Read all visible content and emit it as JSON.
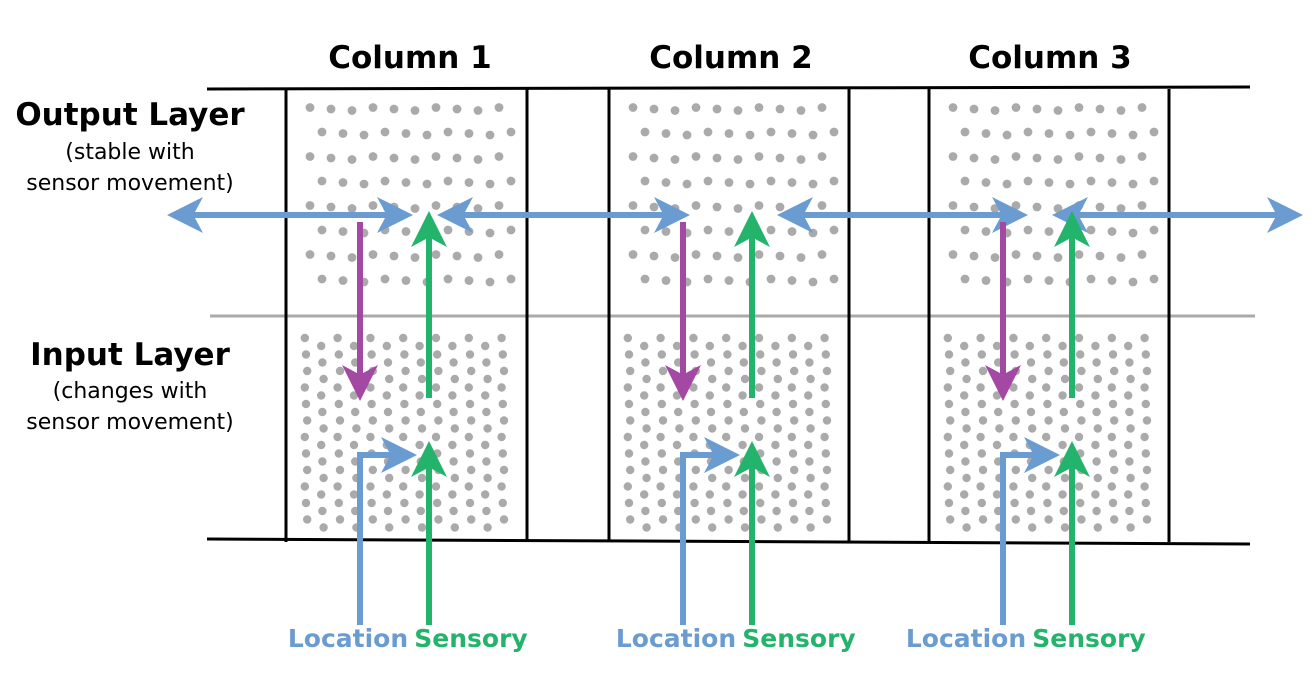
{
  "columns": [
    {
      "title": "Column 1",
      "location_label": "Location",
      "sensory_label": "Sensory"
    },
    {
      "title": "Column 2",
      "location_label": "Location",
      "sensory_label": "Sensory"
    },
    {
      "title": "Column 3",
      "location_label": "Location",
      "sensory_label": "Sensory"
    }
  ],
  "layers": {
    "output": {
      "title": "Output Layer",
      "subtitle_line1": "(stable with",
      "subtitle_line2": "sensor movement)"
    },
    "input": {
      "title": "Input Layer",
      "subtitle_line1": "(changes with",
      "subtitle_line2": "sensor movement)"
    }
  },
  "colors": {
    "location": "#6a9bd1",
    "sensory": "#24b36b",
    "feedback": "#a349a4",
    "lateral": "#6a9bd1",
    "dots": "#aaaaaa",
    "divider": "#aaaaaa",
    "lines": "#000000"
  }
}
